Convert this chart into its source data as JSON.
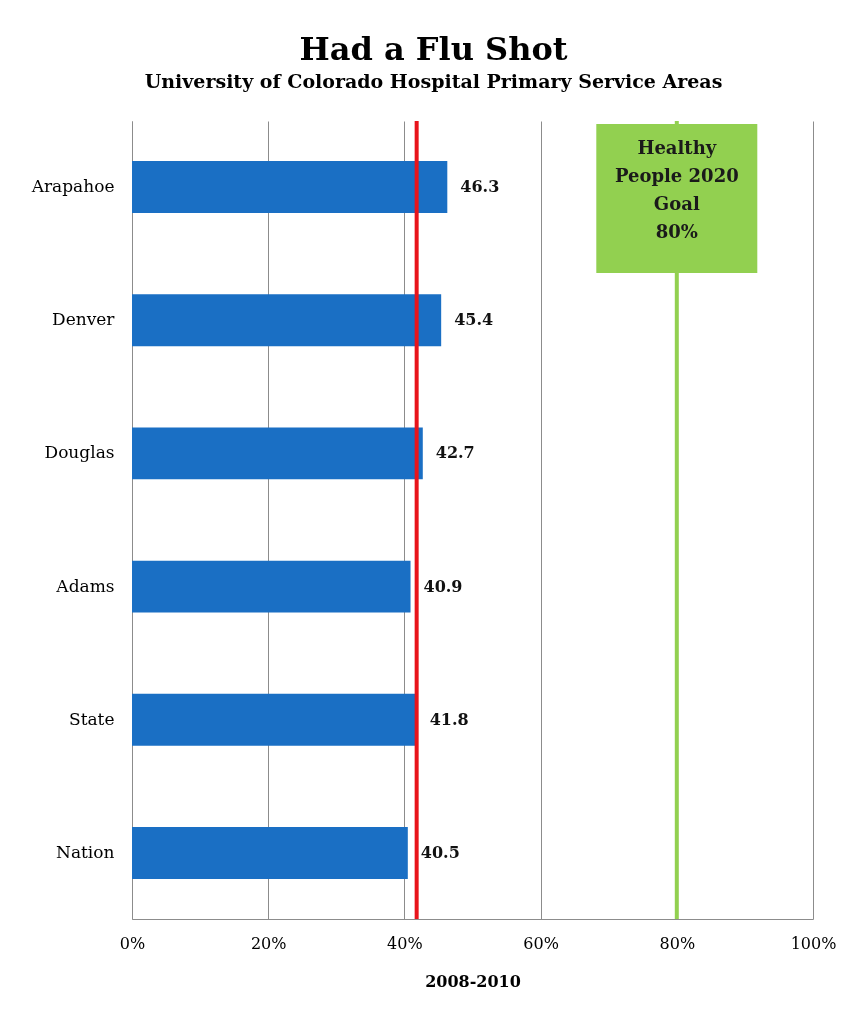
{
  "chart_data": {
    "type": "bar",
    "orientation": "horizontal",
    "title": "Had a Flu Shot",
    "subtitle": "University of Colorado Hospital Primary Service Areas",
    "xlabel": "2008-2010",
    "categories": [
      "Arapahoe",
      "Denver",
      "Douglas",
      "Adams",
      "State",
      "Nation"
    ],
    "values": [
      46.3,
      45.4,
      42.7,
      40.9,
      41.8,
      40.5
    ],
    "color": "#1a6fc4",
    "data_labels": true,
    "xlim": [
      0,
      100
    ],
    "xticks": [
      {
        "value": 0,
        "label": "0%"
      },
      {
        "value": 20,
        "label": "20%"
      },
      {
        "value": 40,
        "label": "40%"
      },
      {
        "value": 60,
        "label": "60%"
      },
      {
        "value": 80,
        "label": "80%"
      },
      {
        "value": 100,
        "label": "100%"
      }
    ],
    "grid": "x",
    "ref_lines": [
      {
        "axis": "x",
        "value": 41.8,
        "color": "#e8141b"
      },
      {
        "axis": "x",
        "value": 80,
        "label": "Healthy\nPeople 2020\nGoal\n80%",
        "color": "#92d050"
      }
    ]
  }
}
